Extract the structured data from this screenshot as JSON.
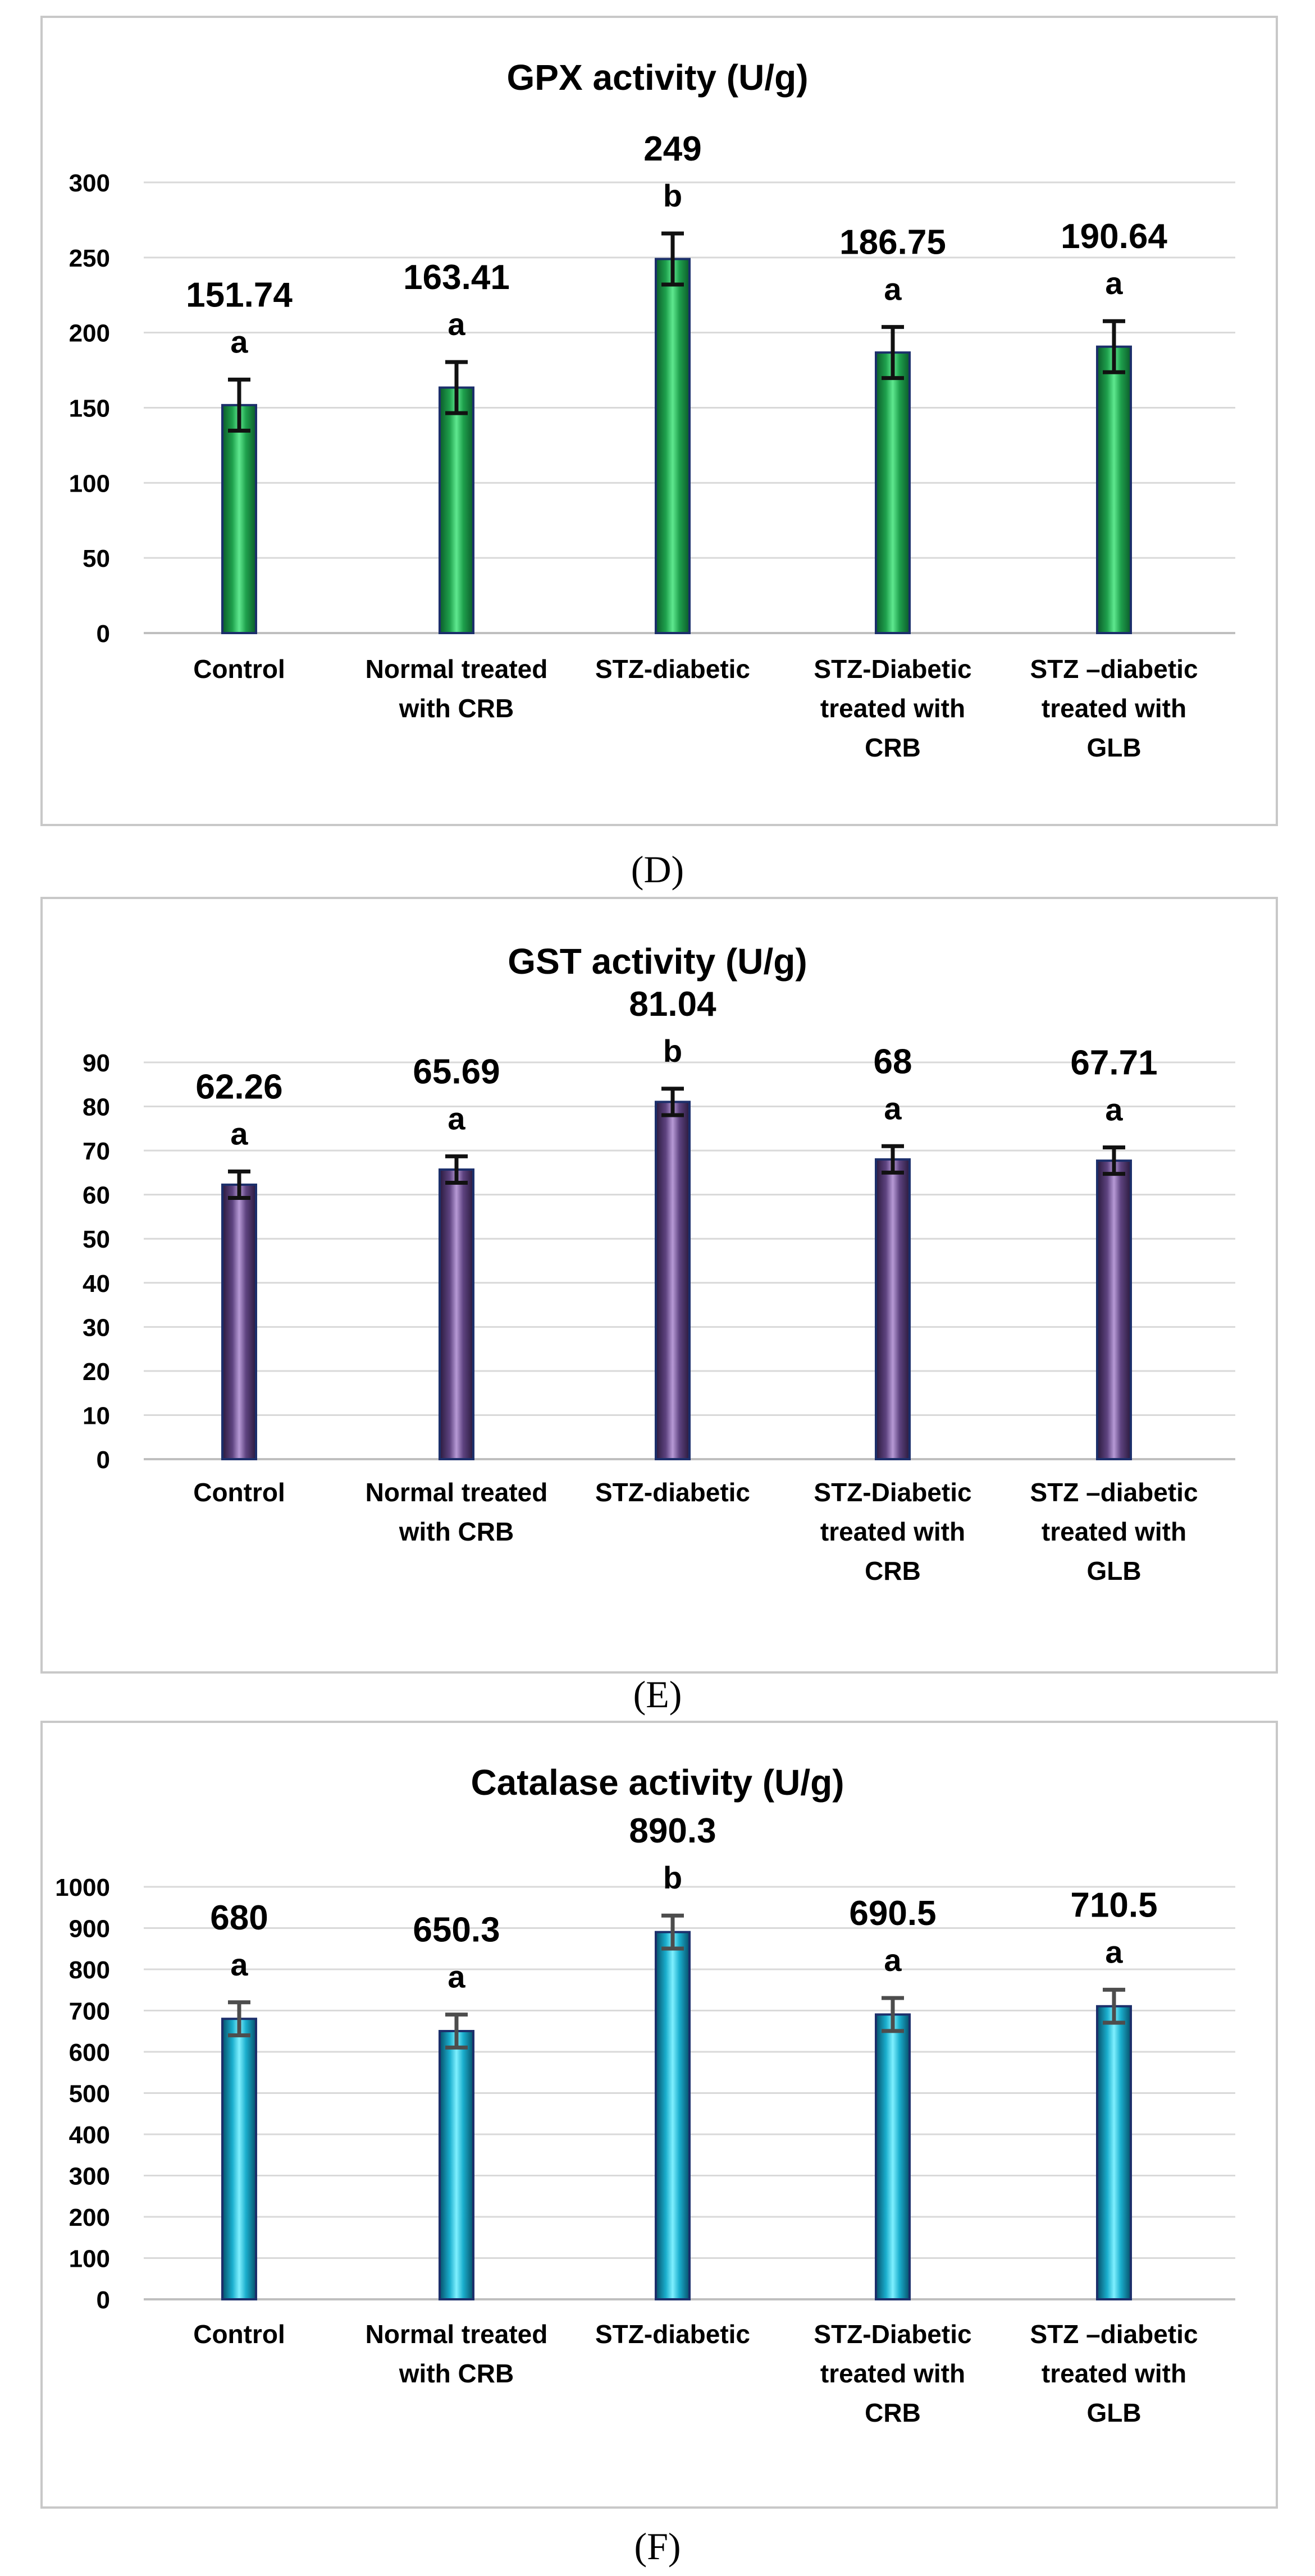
{
  "figures": [
    {
      "panel_label": "(D)",
      "colors": {
        "bar_light": "#5fe88f",
        "bar_mid": "#1fa14d",
        "bar_dark": "#0b5a2a",
        "outline": "#1c2f6b",
        "error": "#111111"
      },
      "chart_data": {
        "type": "bar",
        "title": "GPX activity (U/g)",
        "categories": [
          [
            "Control"
          ],
          [
            "Normal treated",
            "with CRB"
          ],
          [
            "STZ-diabetic"
          ],
          [
            "STZ-Diabetic",
            "treated with",
            "CRB"
          ],
          [
            "STZ –diabetic",
            "treated with",
            "GLB"
          ]
        ],
        "values": [
          151.74,
          163.41,
          249,
          186.75,
          190.64
        ],
        "errors": [
          17,
          17,
          17,
          17,
          17
        ],
        "value_labels": [
          "151.74",
          "163.41",
          "249",
          "186.75",
          "190.64"
        ],
        "letters": [
          "a",
          "a",
          "b",
          "a",
          "a"
        ],
        "yticks": [
          0,
          50,
          100,
          150,
          200,
          250,
          300
        ],
        "ytick_labels": [
          "0",
          "50",
          "100",
          "150",
          "200",
          "250",
          "300"
        ],
        "ylim": [
          0,
          300
        ],
        "xlabel": "",
        "ylabel": "",
        "grid": true
      }
    },
    {
      "panel_label": "(E)",
      "colors": {
        "bar_light": "#b79ad6",
        "bar_mid": "#5e4380",
        "bar_dark": "#2a1a3d",
        "outline": "#1c2f6b",
        "error": "#111111"
      },
      "chart_data": {
        "type": "bar",
        "title": "GST activity (U/g)",
        "categories": [
          [
            "Control"
          ],
          [
            "Normal treated",
            "with CRB"
          ],
          [
            "STZ-diabetic"
          ],
          [
            "STZ-Diabetic",
            "treated with",
            "CRB"
          ],
          [
            "STZ –diabetic",
            "treated with",
            "GLB"
          ]
        ],
        "values": [
          62.26,
          65.69,
          81.04,
          68,
          67.71
        ],
        "errors": [
          3,
          3,
          3,
          3,
          3
        ],
        "value_labels": [
          "62.26",
          "65.69",
          "81.04",
          "68",
          "67.71"
        ],
        "letters": [
          "a",
          "a",
          "b",
          "a",
          "a"
        ],
        "yticks": [
          0,
          10,
          20,
          30,
          40,
          50,
          60,
          70,
          80,
          90
        ],
        "ytick_labels": [
          "0",
          "10",
          "20",
          "30",
          "40",
          "50",
          "60",
          "70",
          "80",
          "90"
        ],
        "ylim": [
          0,
          90
        ],
        "xlabel": "",
        "ylabel": "",
        "grid": true
      }
    },
    {
      "panel_label": "(F)",
      "colors": {
        "bar_light": "#7ff0ff",
        "bar_mid": "#1aaecd",
        "bar_dark": "#06506a",
        "outline": "#1c2f6b",
        "error": "#4d4d4d"
      },
      "chart_data": {
        "type": "bar",
        "title": "Catalase activity (U/g)",
        "categories": [
          [
            "Control"
          ],
          [
            "Normal treated",
            "with CRB"
          ],
          [
            "STZ-diabetic"
          ],
          [
            "STZ-Diabetic",
            "treated with",
            "CRB"
          ],
          [
            "STZ –diabetic",
            "treated with",
            "GLB"
          ]
        ],
        "values": [
          680,
          650.3,
          890.3,
          690.5,
          710.5
        ],
        "errors": [
          40,
          40,
          40,
          40,
          40
        ],
        "value_labels": [
          "680",
          "650.3",
          "890.3",
          "690.5",
          "710.5"
        ],
        "letters": [
          "a",
          "a",
          "b",
          "a",
          "a"
        ],
        "yticks": [
          0,
          100,
          200,
          300,
          400,
          500,
          600,
          700,
          800,
          900,
          1000
        ],
        "ytick_labels": [
          "0",
          "100",
          "200",
          "300",
          "400",
          "500",
          "600",
          "700",
          "800",
          "900",
          "1000"
        ],
        "ylim": [
          0,
          1000
        ],
        "xlabel": "",
        "ylabel": "",
        "grid": true
      }
    }
  ]
}
